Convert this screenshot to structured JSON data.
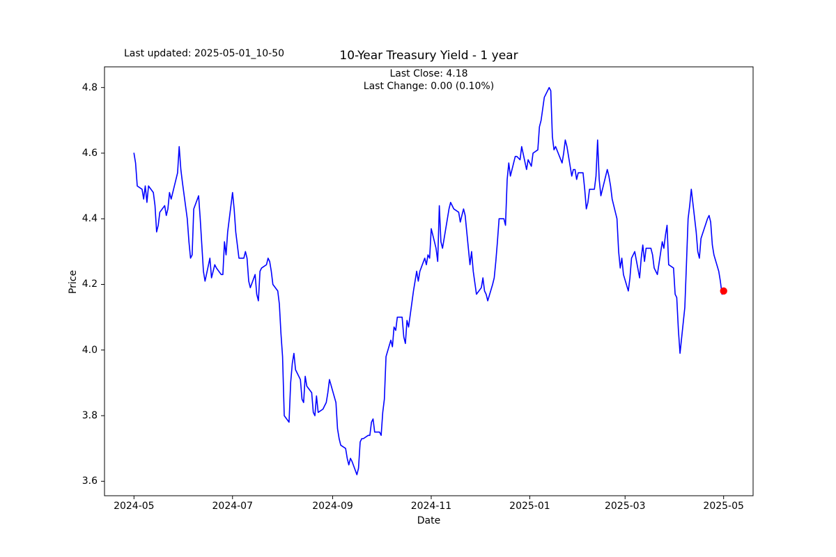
{
  "header": {
    "last_updated": "Last updated: 2025-05-01_10-50"
  },
  "chart_data": {
    "type": "line",
    "title": "10-Year Treasury Yield - 1 year",
    "annotations": {
      "last_close": "Last Close: 4.18",
      "last_change": "Last Change: 0.00 (0.10%)"
    },
    "xlabel": "Date",
    "ylabel": "Price",
    "grid": false,
    "legend": null,
    "line_color": "#0000ff",
    "last_point_color": "#ff0000",
    "axis_color": "#000000",
    "ylim": [
      3.556,
      4.863
    ],
    "y_ticks": [
      {
        "label": "3.6",
        "value": 3.6
      },
      {
        "label": "3.8",
        "value": 3.8
      },
      {
        "label": "4.0",
        "value": 4.0
      },
      {
        "label": "4.2",
        "value": 4.2
      },
      {
        "label": "4.4",
        "value": 4.4
      },
      {
        "label": "4.6",
        "value": 4.6
      },
      {
        "label": "4.8",
        "value": 4.8
      }
    ],
    "x_start_date": "2024-05-01",
    "x_end_date": "2025-05-01",
    "x_margin_days": 18.25,
    "x_ticks": [
      {
        "label": "2024-05",
        "date": "2024-05-01"
      },
      {
        "label": "2024-07",
        "date": "2024-07-01"
      },
      {
        "label": "2024-09",
        "date": "2024-09-01"
      },
      {
        "label": "2024-11",
        "date": "2024-11-01"
      },
      {
        "label": "2025-01",
        "date": "2025-01-01"
      },
      {
        "label": "2025-03",
        "date": "2025-03-01"
      },
      {
        "label": "2025-05",
        "date": "2025-05-01"
      }
    ],
    "series": [
      {
        "name": "10-Year Treasury Yield",
        "points": [
          [
            "2024-05-01",
            4.6
          ],
          [
            "2024-05-02",
            4.57
          ],
          [
            "2024-05-03",
            4.5
          ],
          [
            "2024-05-06",
            4.49
          ],
          [
            "2024-05-07",
            4.46
          ],
          [
            "2024-05-08",
            4.5
          ],
          [
            "2024-05-09",
            4.45
          ],
          [
            "2024-05-10",
            4.5
          ],
          [
            "2024-05-13",
            4.48
          ],
          [
            "2024-05-14",
            4.44
          ],
          [
            "2024-05-15",
            4.36
          ],
          [
            "2024-05-16",
            4.38
          ],
          [
            "2024-05-17",
            4.42
          ],
          [
            "2024-05-20",
            4.44
          ],
          [
            "2024-05-21",
            4.41
          ],
          [
            "2024-05-22",
            4.43
          ],
          [
            "2024-05-23",
            4.48
          ],
          [
            "2024-05-24",
            4.46
          ],
          [
            "2024-05-28",
            4.54
          ],
          [
            "2024-05-29",
            4.62
          ],
          [
            "2024-05-30",
            4.55
          ],
          [
            "2024-05-31",
            4.51
          ],
          [
            "2024-06-03",
            4.4
          ],
          [
            "2024-06-04",
            4.33
          ],
          [
            "2024-06-05",
            4.28
          ],
          [
            "2024-06-06",
            4.29
          ],
          [
            "2024-06-07",
            4.43
          ],
          [
            "2024-06-10",
            4.47
          ],
          [
            "2024-06-11",
            4.4
          ],
          [
            "2024-06-12",
            4.32
          ],
          [
            "2024-06-13",
            4.24
          ],
          [
            "2024-06-14",
            4.21
          ],
          [
            "2024-06-17",
            4.28
          ],
          [
            "2024-06-18",
            4.22
          ],
          [
            "2024-06-20",
            4.26
          ],
          [
            "2024-06-21",
            4.25
          ],
          [
            "2024-06-24",
            4.23
          ],
          [
            "2024-06-25",
            4.23
          ],
          [
            "2024-06-26",
            4.33
          ],
          [
            "2024-06-27",
            4.29
          ],
          [
            "2024-06-28",
            4.36
          ],
          [
            "2024-07-01",
            4.48
          ],
          [
            "2024-07-02",
            4.43
          ],
          [
            "2024-07-03",
            4.36
          ],
          [
            "2024-07-05",
            4.28
          ],
          [
            "2024-07-08",
            4.28
          ],
          [
            "2024-07-09",
            4.3
          ],
          [
            "2024-07-10",
            4.28
          ],
          [
            "2024-07-11",
            4.21
          ],
          [
            "2024-07-12",
            4.19
          ],
          [
            "2024-07-15",
            4.23
          ],
          [
            "2024-07-16",
            4.17
          ],
          [
            "2024-07-17",
            4.15
          ],
          [
            "2024-07-18",
            4.24
          ],
          [
            "2024-07-19",
            4.25
          ],
          [
            "2024-07-22",
            4.26
          ],
          [
            "2024-07-23",
            4.28
          ],
          [
            "2024-07-24",
            4.27
          ],
          [
            "2024-07-25",
            4.24
          ],
          [
            "2024-07-26",
            4.2
          ],
          [
            "2024-07-29",
            4.18
          ],
          [
            "2024-07-30",
            4.14
          ],
          [
            "2024-07-31",
            4.05
          ],
          [
            "2024-08-01",
            3.98
          ],
          [
            "2024-08-02",
            3.8
          ],
          [
            "2024-08-05",
            3.78
          ],
          [
            "2024-08-06",
            3.9
          ],
          [
            "2024-08-07",
            3.96
          ],
          [
            "2024-08-08",
            3.99
          ],
          [
            "2024-08-09",
            3.94
          ],
          [
            "2024-08-12",
            3.91
          ],
          [
            "2024-08-13",
            3.85
          ],
          [
            "2024-08-14",
            3.84
          ],
          [
            "2024-08-15",
            3.92
          ],
          [
            "2024-08-16",
            3.89
          ],
          [
            "2024-08-19",
            3.87
          ],
          [
            "2024-08-20",
            3.81
          ],
          [
            "2024-08-21",
            3.8
          ],
          [
            "2024-08-22",
            3.86
          ],
          [
            "2024-08-23",
            3.81
          ],
          [
            "2024-08-26",
            3.82
          ],
          [
            "2024-08-27",
            3.83
          ],
          [
            "2024-08-28",
            3.84
          ],
          [
            "2024-08-29",
            3.87
          ],
          [
            "2024-08-30",
            3.91
          ],
          [
            "2024-09-03",
            3.84
          ],
          [
            "2024-09-04",
            3.76
          ],
          [
            "2024-09-05",
            3.73
          ],
          [
            "2024-09-06",
            3.71
          ],
          [
            "2024-09-09",
            3.7
          ],
          [
            "2024-09-10",
            3.67
          ],
          [
            "2024-09-11",
            3.65
          ],
          [
            "2024-09-12",
            3.67
          ],
          [
            "2024-09-13",
            3.66
          ],
          [
            "2024-09-16",
            3.62
          ],
          [
            "2024-09-17",
            3.64
          ],
          [
            "2024-09-18",
            3.72
          ],
          [
            "2024-09-19",
            3.73
          ],
          [
            "2024-09-20",
            3.73
          ],
          [
            "2024-09-23",
            3.74
          ],
          [
            "2024-09-24",
            3.74
          ],
          [
            "2024-09-25",
            3.78
          ],
          [
            "2024-09-26",
            3.79
          ],
          [
            "2024-09-27",
            3.75
          ],
          [
            "2024-09-30",
            3.75
          ],
          [
            "2024-10-01",
            3.74
          ],
          [
            "2024-10-02",
            3.81
          ],
          [
            "2024-10-03",
            3.85
          ],
          [
            "2024-10-04",
            3.98
          ],
          [
            "2024-10-07",
            4.03
          ],
          [
            "2024-10-08",
            4.01
          ],
          [
            "2024-10-09",
            4.07
          ],
          [
            "2024-10-10",
            4.06
          ],
          [
            "2024-10-11",
            4.1
          ],
          [
            "2024-10-14",
            4.1
          ],
          [
            "2024-10-15",
            4.04
          ],
          [
            "2024-10-16",
            4.02
          ],
          [
            "2024-10-17",
            4.09
          ],
          [
            "2024-10-18",
            4.07
          ],
          [
            "2024-10-21",
            4.18
          ],
          [
            "2024-10-22",
            4.21
          ],
          [
            "2024-10-23",
            4.24
          ],
          [
            "2024-10-24",
            4.21
          ],
          [
            "2024-10-25",
            4.24
          ],
          [
            "2024-10-28",
            4.28
          ],
          [
            "2024-10-29",
            4.26
          ],
          [
            "2024-10-30",
            4.29
          ],
          [
            "2024-10-31",
            4.28
          ],
          [
            "2024-11-01",
            4.37
          ],
          [
            "2024-11-04",
            4.31
          ],
          [
            "2024-11-05",
            4.27
          ],
          [
            "2024-11-06",
            4.44
          ],
          [
            "2024-11-07",
            4.33
          ],
          [
            "2024-11-08",
            4.31
          ],
          [
            "2024-11-12",
            4.43
          ],
          [
            "2024-11-13",
            4.45
          ],
          [
            "2024-11-14",
            4.44
          ],
          [
            "2024-11-15",
            4.43
          ],
          [
            "2024-11-18",
            4.42
          ],
          [
            "2024-11-19",
            4.39
          ],
          [
            "2024-11-20",
            4.41
          ],
          [
            "2024-11-21",
            4.43
          ],
          [
            "2024-11-22",
            4.41
          ],
          [
            "2024-11-25",
            4.26
          ],
          [
            "2024-11-26",
            4.3
          ],
          [
            "2024-11-27",
            4.24
          ],
          [
            "2024-11-29",
            4.17
          ],
          [
            "2024-12-02",
            4.19
          ],
          [
            "2024-12-03",
            4.22
          ],
          [
            "2024-12-04",
            4.18
          ],
          [
            "2024-12-05",
            4.17
          ],
          [
            "2024-12-06",
            4.15
          ],
          [
            "2024-12-09",
            4.2
          ],
          [
            "2024-12-10",
            4.22
          ],
          [
            "2024-12-11",
            4.27
          ],
          [
            "2024-12-12",
            4.33
          ],
          [
            "2024-12-13",
            4.4
          ],
          [
            "2024-12-16",
            4.4
          ],
          [
            "2024-12-17",
            4.38
          ],
          [
            "2024-12-18",
            4.52
          ],
          [
            "2024-12-19",
            4.57
          ],
          [
            "2024-12-20",
            4.53
          ],
          [
            "2024-12-23",
            4.59
          ],
          [
            "2024-12-24",
            4.59
          ],
          [
            "2024-12-26",
            4.58
          ],
          [
            "2024-12-27",
            4.62
          ],
          [
            "2024-12-30",
            4.55
          ],
          [
            "2024-12-31",
            4.58
          ],
          [
            "2025-01-02",
            4.56
          ],
          [
            "2025-01-03",
            4.6
          ],
          [
            "2025-01-06",
            4.61
          ],
          [
            "2025-01-07",
            4.68
          ],
          [
            "2025-01-08",
            4.7
          ],
          [
            "2025-01-10",
            4.77
          ],
          [
            "2025-01-13",
            4.8
          ],
          [
            "2025-01-14",
            4.79
          ],
          [
            "2025-01-15",
            4.65
          ],
          [
            "2025-01-16",
            4.61
          ],
          [
            "2025-01-17",
            4.62
          ],
          [
            "2025-01-21",
            4.57
          ],
          [
            "2025-01-22",
            4.6
          ],
          [
            "2025-01-23",
            4.64
          ],
          [
            "2025-01-24",
            4.62
          ],
          [
            "2025-01-27",
            4.53
          ],
          [
            "2025-01-28",
            4.55
          ],
          [
            "2025-01-29",
            4.55
          ],
          [
            "2025-01-30",
            4.52
          ],
          [
            "2025-01-31",
            4.54
          ],
          [
            "2025-02-03",
            4.54
          ],
          [
            "2025-02-04",
            4.49
          ],
          [
            "2025-02-05",
            4.43
          ],
          [
            "2025-02-06",
            4.45
          ],
          [
            "2025-02-07",
            4.49
          ],
          [
            "2025-02-10",
            4.49
          ],
          [
            "2025-02-11",
            4.53
          ],
          [
            "2025-02-12",
            4.64
          ],
          [
            "2025-02-13",
            4.52
          ],
          [
            "2025-02-14",
            4.47
          ],
          [
            "2025-02-18",
            4.55
          ],
          [
            "2025-02-19",
            4.53
          ],
          [
            "2025-02-20",
            4.5
          ],
          [
            "2025-02-21",
            4.46
          ],
          [
            "2025-02-24",
            4.4
          ],
          [
            "2025-02-25",
            4.3
          ],
          [
            "2025-02-26",
            4.25
          ],
          [
            "2025-02-27",
            4.28
          ],
          [
            "2025-02-28",
            4.23
          ],
          [
            "2025-03-03",
            4.18
          ],
          [
            "2025-03-04",
            4.22
          ],
          [
            "2025-03-05",
            4.28
          ],
          [
            "2025-03-06",
            4.29
          ],
          [
            "2025-03-07",
            4.3
          ],
          [
            "2025-03-10",
            4.22
          ],
          [
            "2025-03-11",
            4.28
          ],
          [
            "2025-03-12",
            4.32
          ],
          [
            "2025-03-13",
            4.27
          ],
          [
            "2025-03-14",
            4.31
          ],
          [
            "2025-03-17",
            4.31
          ],
          [
            "2025-03-18",
            4.29
          ],
          [
            "2025-03-19",
            4.25
          ],
          [
            "2025-03-20",
            4.24
          ],
          [
            "2025-03-21",
            4.23
          ],
          [
            "2025-03-24",
            4.33
          ],
          [
            "2025-03-25",
            4.31
          ],
          [
            "2025-03-26",
            4.35
          ],
          [
            "2025-03-27",
            4.38
          ],
          [
            "2025-03-28",
            4.26
          ],
          [
            "2025-03-31",
            4.25
          ],
          [
            "2025-04-01",
            4.17
          ],
          [
            "2025-04-02",
            4.16
          ],
          [
            "2025-04-03",
            4.06
          ],
          [
            "2025-04-04",
            3.99
          ],
          [
            "2025-04-07",
            4.13
          ],
          [
            "2025-04-08",
            4.26
          ],
          [
            "2025-04-09",
            4.4
          ],
          [
            "2025-04-10",
            4.44
          ],
          [
            "2025-04-11",
            4.49
          ],
          [
            "2025-04-14",
            4.36
          ],
          [
            "2025-04-15",
            4.3
          ],
          [
            "2025-04-16",
            4.28
          ],
          [
            "2025-04-17",
            4.34
          ],
          [
            "2025-04-21",
            4.4
          ],
          [
            "2025-04-22",
            4.41
          ],
          [
            "2025-04-23",
            4.39
          ],
          [
            "2025-04-24",
            4.32
          ],
          [
            "2025-04-25",
            4.29
          ],
          [
            "2025-04-28",
            4.24
          ],
          [
            "2025-04-29",
            4.21
          ],
          [
            "2025-04-30",
            4.17
          ],
          [
            "2025-05-01",
            4.18
          ]
        ]
      }
    ],
    "last_point": {
      "date": "2025-05-01",
      "value": 4.18
    }
  }
}
